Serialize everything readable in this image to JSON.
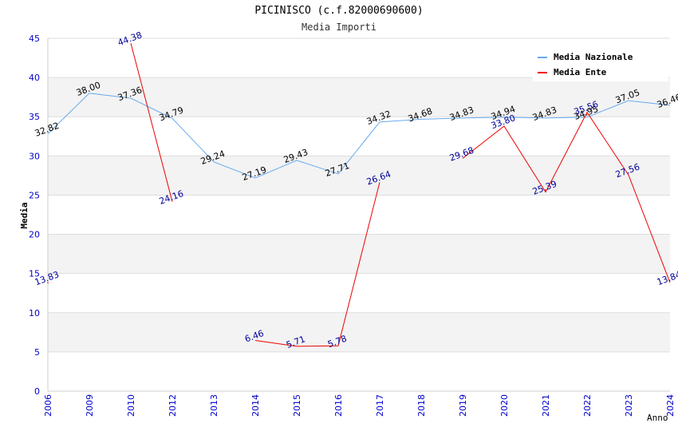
{
  "page": {
    "title": "PICINISCO (c.f.82000690600)",
    "subtitle": "Media Importi"
  },
  "chart_data": {
    "type": "line",
    "title": "PICINISCO (c.f.82000690600)",
    "subtitle": "Media Importi",
    "xlabel": "Anno",
    "ylabel": "Media",
    "categories": [
      "2006",
      "2009",
      "2010",
      "2012",
      "2013",
      "2014",
      "2015",
      "2016",
      "2017",
      "2018",
      "2019",
      "2020",
      "2021",
      "2022",
      "2023",
      "2024"
    ],
    "ylim": [
      0,
      45
    ],
    "yticks": [
      0,
      5,
      10,
      15,
      20,
      25,
      30,
      35,
      40,
      45
    ],
    "grid": "horizontal bands",
    "legend_position": "top-right",
    "series": [
      {
        "name": "Media Nazionale",
        "color": "#66aaee",
        "label_color": "#000000",
        "values": [
          32.82,
          38.0,
          37.36,
          34.79,
          29.24,
          27.19,
          29.43,
          27.71,
          34.32,
          34.68,
          34.83,
          34.94,
          34.83,
          34.95,
          37.05,
          36.46
        ],
        "labels": [
          "32.82",
          "38.00",
          "37.36",
          "34.79",
          "29.24",
          "27.19",
          "29.43",
          "27.71",
          "34.32",
          "34.68",
          "34.83",
          "34.94",
          "34.83",
          "34.95",
          "37.05",
          "36.46"
        ]
      },
      {
        "name": "Media Ente",
        "color": "#ee0000",
        "label_color": "#000099",
        "values": [
          13.83,
          null,
          44.38,
          24.16,
          null,
          6.46,
          5.71,
          5.78,
          26.64,
          null,
          29.68,
          33.8,
          25.39,
          35.56,
          27.56,
          13.84
        ],
        "labels": [
          "13.83",
          "",
          "44.38",
          "24.16",
          "",
          "6.46",
          "5.71",
          "5.78",
          "26.64",
          "",
          "29.68",
          "33.80",
          "25.39",
          "35.56",
          "27.56",
          "13.84"
        ]
      }
    ]
  }
}
